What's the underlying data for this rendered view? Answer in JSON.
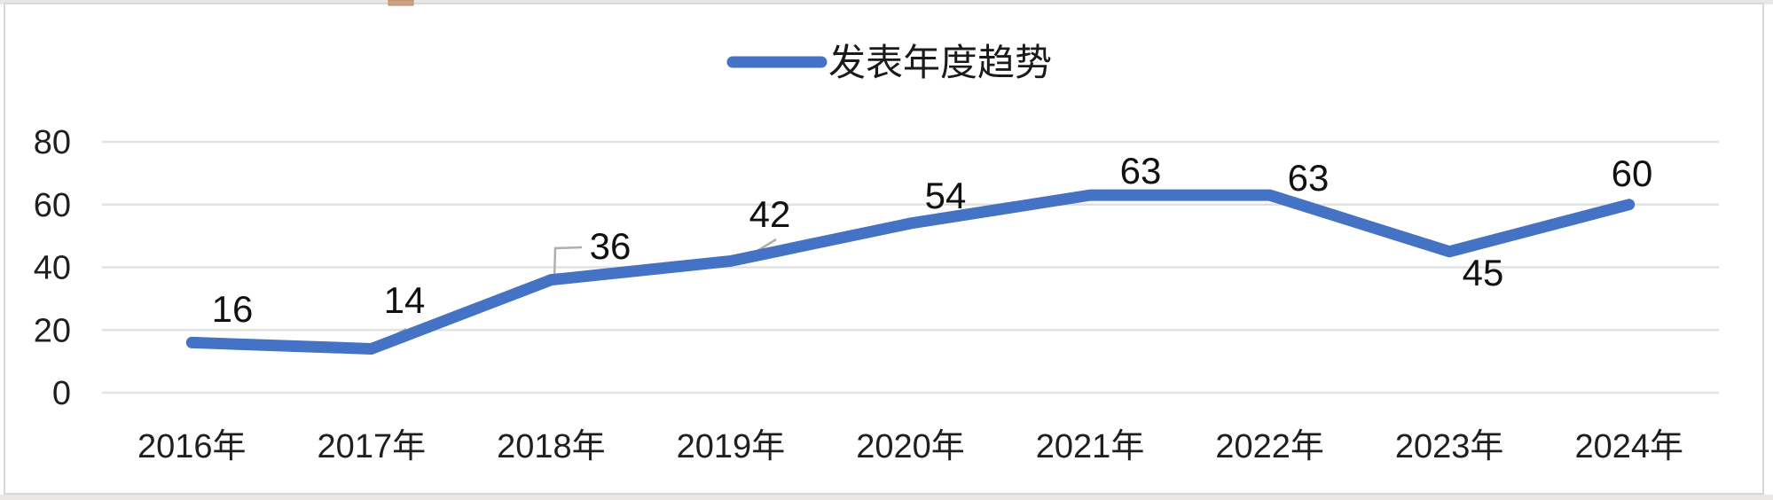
{
  "chart_data": {
    "type": "line",
    "title": "",
    "legend_label": "发表年度趋势",
    "legend_position": "top-center",
    "categories": [
      "2016年",
      "2017年",
      "2018年",
      "2019年",
      "2020年",
      "2021年",
      "2022年",
      "2023年",
      "2024年"
    ],
    "series": [
      {
        "name": "发表年度趋势",
        "values": [
          16,
          14,
          36,
          42,
          54,
          63,
          63,
          45,
          60
        ]
      }
    ],
    "data_labels": [
      "16",
      "14",
      "36",
      "42",
      "54",
      "63",
      "63",
      "45",
      "60"
    ],
    "ytick_labels": [
      "0",
      "20",
      "40",
      "60",
      "80"
    ],
    "yticks": [
      0,
      20,
      40,
      60,
      80
    ],
    "ylim": [
      0,
      80
    ],
    "grid": "horizontal-only",
    "colors": {
      "series_line": "#4472C4",
      "gridline": "#E2E2E2",
      "axis_text": "#1F1F1F",
      "data_label_text": "#111111",
      "leader_line": "#AFAFAF",
      "frame_border": "#D8D8D8",
      "page_edge_strip": "#E8E7E5",
      "artifact_tan": "#CDA183"
    }
  }
}
